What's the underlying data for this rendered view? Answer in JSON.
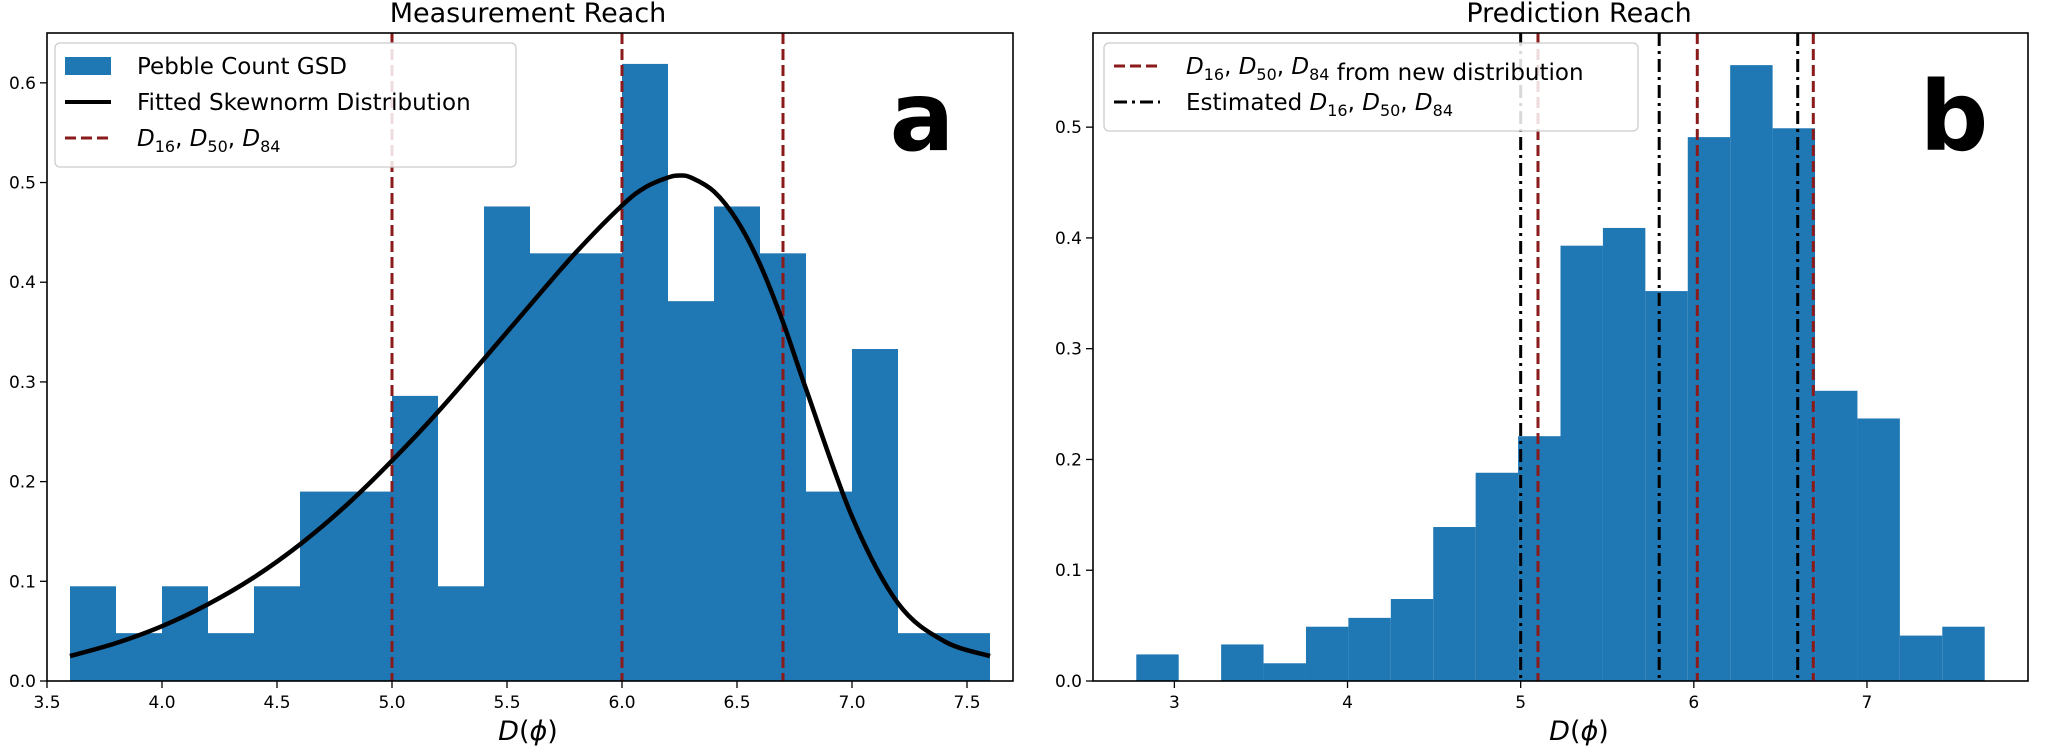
{
  "colors": {
    "bar": "#1f77b4",
    "fit_line": "#000000",
    "pebble_lines": "#8b1a1a",
    "estimated_lines": "#000000"
  },
  "chart_data": [
    {
      "type": "bar",
      "title": "Measurement Reach",
      "panel_letter": "a",
      "xlabel": "D(ϕ)",
      "xlim": [
        3.5,
        7.7
      ],
      "ylim": [
        0,
        0.65
      ],
      "xticks": [
        3.5,
        4.0,
        4.5,
        5.0,
        5.5,
        6.0,
        6.5,
        7.0,
        7.5
      ],
      "xtick_labels": [
        "3.5",
        "4.0",
        "4.5",
        "5.0",
        "5.5",
        "6.0",
        "6.5",
        "7.0",
        "7.5"
      ],
      "yticks": [
        0.0,
        0.1,
        0.2,
        0.3,
        0.4,
        0.5,
        0.6
      ],
      "ytick_labels": [
        "0.0",
        "0.1",
        "0.2",
        "0.3",
        "0.4",
        "0.5",
        "0.6"
      ],
      "histogram": {
        "name": "Pebble Count GSD",
        "bin_edges": [
          3.6,
          3.8,
          4.0,
          4.2,
          4.4,
          4.6,
          4.8,
          5.0,
          5.2,
          5.4,
          5.6,
          5.8,
          6.0,
          6.2,
          6.4,
          6.6,
          6.8,
          7.0,
          7.2,
          7.4,
          7.6
        ],
        "values": [
          0.095,
          0.048,
          0.095,
          0.048,
          0.095,
          0.19,
          0.19,
          0.286,
          0.095,
          0.476,
          0.429,
          0.429,
          0.619,
          0.381,
          0.476,
          0.429,
          0.19,
          0.333,
          0.048,
          0.048
        ]
      },
      "fit": {
        "name": "Fitted Skewnorm Distribution",
        "x": [
          3.6,
          3.8,
          4.0,
          4.2,
          4.4,
          4.6,
          4.8,
          5.0,
          5.2,
          5.4,
          5.6,
          5.8,
          6.0,
          6.1,
          6.2,
          6.25,
          6.3,
          6.4,
          6.5,
          6.6,
          6.7,
          6.8,
          7.0,
          7.2,
          7.4,
          7.6
        ],
        "y": [
          0.025,
          0.038,
          0.055,
          0.077,
          0.104,
          0.137,
          0.176,
          0.221,
          0.27,
          0.323,
          0.377,
          0.43,
          0.477,
          0.495,
          0.505,
          0.507,
          0.505,
          0.491,
          0.462,
          0.418,
          0.36,
          0.293,
          0.165,
          0.078,
          0.04,
          0.025
        ]
      },
      "reference_lines": {
        "name": "D16, D50, D84",
        "x": [
          5.0,
          6.0,
          6.7
        ]
      },
      "legend": {
        "placement": "top-left",
        "entries": [
          {
            "kind": "bar",
            "label": "Pebble Count GSD"
          },
          {
            "kind": "solid",
            "label": "Fitted Skewnorm Distribution"
          },
          {
            "kind": "dashed",
            "sub": [
              "16",
              "50",
              "84"
            ],
            "suffix": ""
          }
        ]
      }
    },
    {
      "type": "bar",
      "title": "Prediction Reach",
      "panel_letter": "b",
      "xlabel": "D(ϕ)",
      "xlim": [
        2.53,
        7.93
      ],
      "ylim": [
        0,
        0.585
      ],
      "xticks": [
        3,
        4,
        5,
        6,
        7
      ],
      "xtick_labels": [
        "3",
        "4",
        "5",
        "6",
        "7"
      ],
      "yticks": [
        0.0,
        0.1,
        0.2,
        0.3,
        0.4,
        0.5
      ],
      "ytick_labels": [
        "0.0",
        "0.1",
        "0.2",
        "0.3",
        "0.4",
        "0.5"
      ],
      "histogram": {
        "bin_edges": [
          2.78,
          3.025,
          3.27,
          3.515,
          3.76,
          4.005,
          4.25,
          4.495,
          4.74,
          4.985,
          5.23,
          5.475,
          5.72,
          5.965,
          6.21,
          6.455,
          6.7,
          6.945,
          7.19,
          7.435,
          7.68
        ],
        "values": [
          0.024,
          0.0,
          0.033,
          0.016,
          0.049,
          0.057,
          0.074,
          0.139,
          0.188,
          0.221,
          0.393,
          0.409,
          0.352,
          0.491,
          0.556,
          0.499,
          0.262,
          0.237,
          0.041,
          0.049
        ]
      },
      "reference_lines": {
        "name": "D16, D50, D84 from new distribution",
        "x": [
          5.1,
          6.02,
          6.69
        ]
      },
      "estimated_lines": {
        "name": "Estimated D16, D50, D84",
        "x": [
          5.0,
          5.8,
          6.6
        ]
      },
      "legend": {
        "placement": "top-left",
        "entries": [
          {
            "kind": "dashed",
            "sub": [
              "16",
              "50",
              "84"
            ],
            "suffix": " from new distribution"
          },
          {
            "kind": "dashdot",
            "prefix": "Estimated ",
            "sub": [
              "16",
              "50",
              "84"
            ],
            "suffix": ""
          }
        ]
      }
    }
  ]
}
